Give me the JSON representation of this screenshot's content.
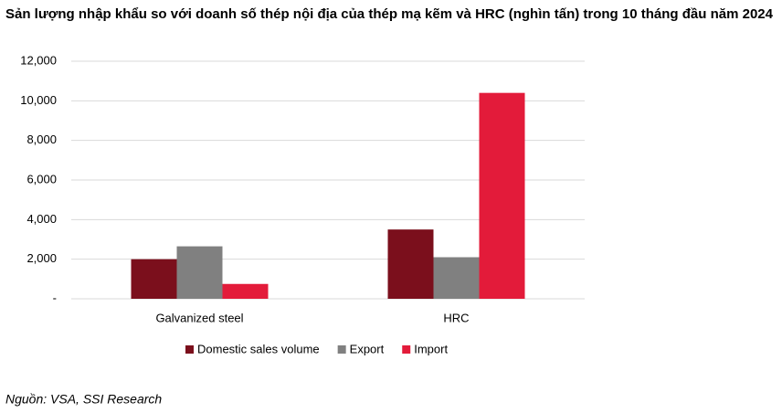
{
  "chart_data": {
    "type": "bar",
    "title": "Sản lượng nhập khẩu so với doanh số thép nội địa của thép mạ kẽm và HRC (nghìn tấn) trong 10 tháng đầu năm 2024",
    "categories": [
      "Galvanized steel",
      "HRC"
    ],
    "series": [
      {
        "name": "Domestic sales volume",
        "color": "#7b0f1c",
        "values": [
          2000,
          3500
        ]
      },
      {
        "name": "Export",
        "color": "#808080",
        "values": [
          2650,
          2100
        ]
      },
      {
        "name": "Import",
        "color": "#e31b3a",
        "values": [
          750,
          10400
        ]
      }
    ],
    "ylim": [
      0,
      12000
    ],
    "yticks": [
      {
        "value": 0,
        "label": "-"
      },
      {
        "value": 2000,
        "label": "2,000"
      },
      {
        "value": 4000,
        "label": "4,000"
      },
      {
        "value": 6000,
        "label": "6,000"
      },
      {
        "value": 8000,
        "label": "8,000"
      },
      {
        "value": 10000,
        "label": "10,000"
      },
      {
        "value": 12000,
        "label": "12,000"
      }
    ],
    "grid": true,
    "legend": "bottom",
    "source": "Nguồn: VSA, SSI Research"
  }
}
